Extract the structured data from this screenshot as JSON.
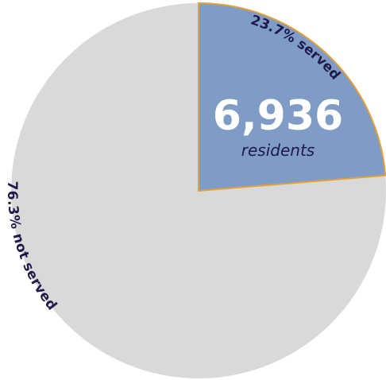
{
  "chart_data": {
    "type": "pie",
    "slices": [
      {
        "label": "23.7% served",
        "value": 23.7,
        "color": "#7f9cc6",
        "stroke": "#e3a03a"
      },
      {
        "label": "76.3% not served",
        "value": 76.3,
        "color": "#d9d9d9",
        "stroke": "none"
      }
    ],
    "center_value": "6,936",
    "center_unit": "residents",
    "text_color": "#1e1a4a"
  }
}
